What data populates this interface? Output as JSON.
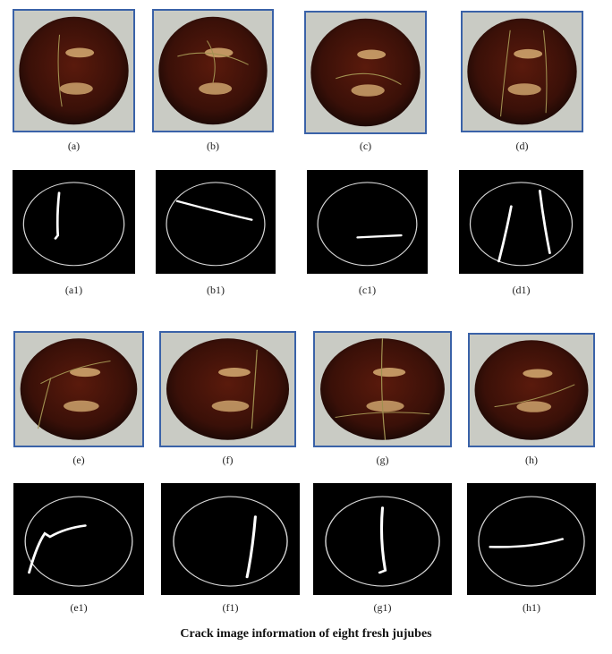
{
  "figure": {
    "photo_labels": [
      "(a)",
      "(b)",
      "(c)",
      "(d)",
      "(e)",
      "(f)",
      "(g)",
      "(h)"
    ],
    "crack_labels": [
      "(a1)",
      "(b1)",
      "(c1)",
      "(d1)",
      "(e1)",
      "(f1)",
      "(g1)",
      "(h1)"
    ],
    "caption": "Crack image information of eight fresh jujubes",
    "colors": {
      "photo_border": "#3a62a8",
      "jujube": "#3a1008",
      "crack_background": "#000000",
      "crack_outline": "#d8d8d8"
    }
  }
}
